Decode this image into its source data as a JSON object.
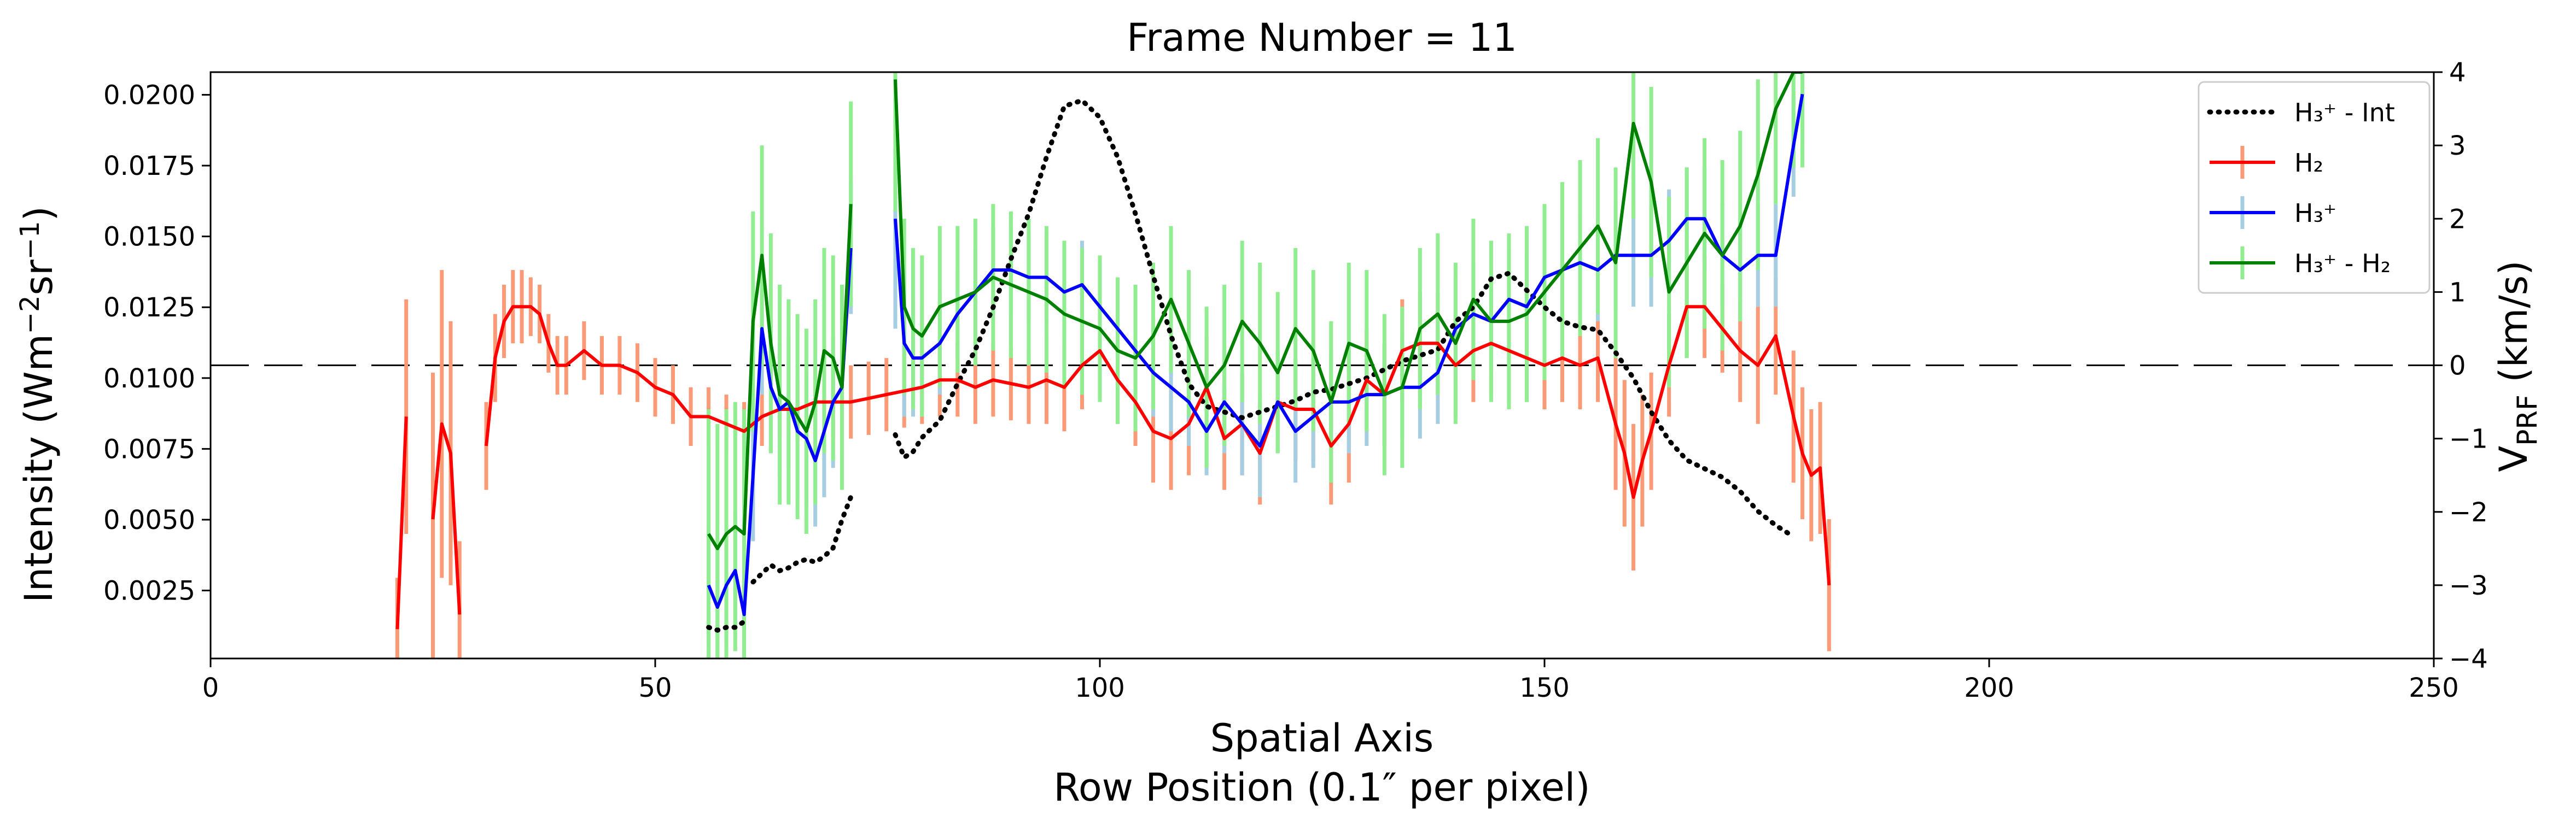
{
  "chart_data": {
    "type": "line",
    "title": "Frame Number = 11",
    "xlabel_line1": "Spatial Axis",
    "xlabel_line2": "Row Position (0.1″ per pixel)",
    "ylabel_left": "Intensity (Wm⁻²sr⁻¹)",
    "ylabel_right": "V_PRF (km/s)",
    "xlim": [
      0,
      250
    ],
    "ylim_left": [
      0.0001,
      0.0208
    ],
    "ylim_right": [
      -4,
      4
    ],
    "x_ticks": [
      0,
      50,
      100,
      150,
      200,
      250
    ],
    "y_left_ticks": [
      "0.0025",
      "0.0050",
      "0.0075",
      "0.0100",
      "0.0125",
      "0.0150",
      "0.0175",
      "0.0200"
    ],
    "y_right_ticks": [
      "-4",
      "-3",
      "-2",
      "-1",
      "0",
      "1",
      "2",
      "3",
      "4"
    ],
    "zero_line": 0,
    "legend_position": "top-right",
    "legend": [
      {
        "label": "H₃⁺ - Int",
        "style": "dotted",
        "color": "#000000"
      },
      {
        "label": "H₂",
        "style": "solid",
        "color": "#ff0000"
      },
      {
        "label": "H₃⁺",
        "style": "solid",
        "color": "#0000ff"
      },
      {
        "label": "H₃⁺ - H₂",
        "style": "solid",
        "color": "#008000"
      }
    ],
    "series": [
      {
        "name": "H₃⁺ - Int",
        "axis": "left",
        "color": "#000000",
        "style": "dotted",
        "segments": [
          {
            "x": [
              56,
              57,
              58,
              59,
              60
            ],
            "y": [
              0.0012,
              0.0011,
              0.0012,
              0.0012,
              0.0014
            ]
          },
          {
            "x": [
              61,
              62,
              63,
              64,
              65,
              66,
              67,
              68,
              69,
              70,
              71,
              72
            ],
            "y": [
              0.0028,
              0.0031,
              0.0034,
              0.0032,
              0.0033,
              0.0035,
              0.0036,
              0.0035,
              0.0037,
              0.004,
              0.005,
              0.0058
            ]
          },
          {
            "x": [
              77,
              78,
              79,
              80,
              82,
              84,
              86,
              88,
              90,
              92,
              94,
              96,
              98,
              100,
              102,
              104,
              106,
              108,
              110,
              112,
              114,
              116,
              118,
              120,
              122,
              124,
              126,
              128,
              130,
              132,
              134,
              136,
              138,
              140,
              142,
              144,
              146,
              148,
              150,
              152,
              154,
              156,
              158,
              160,
              162,
              164,
              166,
              168,
              170,
              172,
              174,
              176,
              178
            ],
            "y": [
              0.008,
              0.0072,
              0.0074,
              0.0079,
              0.0085,
              0.0098,
              0.011,
              0.0125,
              0.0142,
              0.0158,
              0.0178,
              0.0196,
              0.0198,
              0.0192,
              0.0178,
              0.0158,
              0.0136,
              0.0115,
              0.0098,
              0.009,
              0.0088,
              0.0086,
              0.0088,
              0.009,
              0.0092,
              0.0095,
              0.0096,
              0.0098,
              0.01,
              0.0103,
              0.0106,
              0.0108,
              0.011,
              0.012,
              0.0125,
              0.0135,
              0.0137,
              0.0131,
              0.0125,
              0.012,
              0.0118,
              0.0117,
              0.0109,
              0.01,
              0.0088,
              0.0078,
              0.0071,
              0.0068,
              0.0065,
              0.006,
              0.0053,
              0.0048,
              0.0044
            ]
          }
        ]
      },
      {
        "name": "H₂",
        "axis": "right",
        "color": "#ff0000",
        "error_color": "#fa9a76",
        "style": "solid",
        "segments": [
          {
            "x": [
              21,
              22
            ],
            "y": [
              -3.6,
              -0.7
            ],
            "err": [
              0.7,
              1.6
            ]
          },
          {
            "x": [
              25,
              26,
              27,
              28
            ],
            "y": [
              -2.1,
              -0.8,
              -1.2,
              -3.4
            ],
            "err": [
              2.0,
              2.1,
              1.8,
              1.0
            ]
          },
          {
            "x": [
              31,
              32,
              33,
              34,
              35,
              36,
              37,
              38,
              39,
              40,
              42,
              44,
              46,
              48,
              50,
              52,
              54,
              56,
              58,
              60,
              62,
              64,
              66,
              68,
              70,
              72,
              74,
              76,
              78,
              80,
              82,
              84,
              86,
              88,
              90,
              92,
              94,
              96,
              98,
              100,
              102,
              104,
              106,
              108,
              110,
              112,
              114,
              116,
              118,
              120,
              122,
              124,
              126,
              128,
              130,
              132,
              134,
              136,
              138,
              140,
              142,
              144,
              146,
              148,
              150,
              152,
              154,
              156,
              158,
              159,
              160,
              161,
              162,
              164,
              166,
              168,
              170,
              172,
              174,
              176,
              178,
              179,
              180,
              181,
              182
            ],
            "y": [
              -1.1,
              0.1,
              0.6,
              0.8,
              0.8,
              0.8,
              0.7,
              0.3,
              0.0,
              0.0,
              0.2,
              0.0,
              0.0,
              -0.1,
              -0.3,
              -0.4,
              -0.7,
              -0.7,
              -0.8,
              -0.9,
              -0.7,
              -0.6,
              -0.6,
              -0.5,
              -0.5,
              -0.5,
              -0.45,
              -0.4,
              -0.35,
              -0.3,
              -0.2,
              -0.2,
              -0.3,
              -0.2,
              -0.25,
              -0.3,
              -0.2,
              -0.3,
              0.0,
              0.2,
              -0.2,
              -0.5,
              -0.9,
              -1.0,
              -0.8,
              -0.3,
              -1.0,
              -0.8,
              -1.2,
              -0.5,
              -0.6,
              -0.6,
              -1.1,
              -0.8,
              -0.2,
              -0.4,
              0.2,
              0.3,
              0.3,
              0.0,
              0.2,
              0.3,
              0.2,
              0.1,
              0.0,
              0.1,
              0.0,
              0.1,
              -0.8,
              -1.2,
              -1.8,
              -1.3,
              -0.9,
              0.0,
              0.8,
              0.8,
              0.5,
              0.2,
              0.0,
              0.4,
              -0.7,
              -1.2,
              -1.5,
              -1.4,
              -3.0
            ],
            "err": [
              0.6,
              0.6,
              0.5,
              0.5,
              0.5,
              0.4,
              0.4,
              0.4,
              0.4,
              0.4,
              0.4,
              0.4,
              0.4,
              0.4,
              0.4,
              0.4,
              0.4,
              0.4,
              0.4,
              0.4,
              0.4,
              0.4,
              0.4,
              0.5,
              0.5,
              0.5,
              0.5,
              0.5,
              0.5,
              0.5,
              0.5,
              0.5,
              0.5,
              0.5,
              0.5,
              0.5,
              0.6,
              0.6,
              0.6,
              0.6,
              0.6,
              0.6,
              0.7,
              0.7,
              0.7,
              0.7,
              0.7,
              0.7,
              0.7,
              0.7,
              0.7,
              0.7,
              0.8,
              0.8,
              0.7,
              0.7,
              0.7,
              0.7,
              0.7,
              0.7,
              0.7,
              0.7,
              0.7,
              0.6,
              0.6,
              0.6,
              0.6,
              0.6,
              0.9,
              1.0,
              1.0,
              0.9,
              0.8,
              0.7,
              0.7,
              0.7,
              0.6,
              0.7,
              0.8,
              0.8,
              0.9,
              0.9,
              0.9,
              0.9,
              0.9
            ]
          }
        ]
      },
      {
        "name": "H₃⁺",
        "axis": "right",
        "color": "#0000ff",
        "error_color": "#a6cee3",
        "style": "solid",
        "segments": [
          {
            "x": [
              56,
              57,
              58,
              59,
              60,
              61,
              62,
              63,
              64,
              65,
              66,
              67,
              68,
              69,
              70,
              71,
              72
            ],
            "y": [
              -3.0,
              -3.3,
              -3.0,
              -2.8,
              -3.4,
              -1.5,
              0.5,
              -0.3,
              -0.6,
              -0.5,
              -0.9,
              -1.0,
              -1.3,
              -0.9,
              -0.5,
              -0.3,
              1.6
            ],
            "err": [
              0.8,
              0.8,
              0.8,
              0.8,
              0.8,
              0.9,
              0.9,
              0.9,
              0.9,
              0.9,
              0.9,
              0.9,
              0.9,
              0.9,
              0.9,
              0.9,
              0.9
            ]
          },
          {
            "x": [
              77,
              78,
              79,
              80,
              82,
              84,
              86,
              88,
              90,
              92,
              94,
              96,
              98,
              100,
              102,
              104,
              106,
              108,
              110,
              112,
              114,
              116,
              118,
              120,
              122,
              124,
              126,
              128,
              130,
              132,
              134,
              136,
              138,
              140,
              142,
              144,
              146,
              148,
              150,
              152,
              154,
              156,
              158,
              160,
              162,
              164,
              166,
              168,
              170,
              172,
              174,
              176,
              178,
              179
            ],
            "y": [
              2.0,
              0.3,
              0.1,
              0.1,
              0.3,
              0.7,
              1.0,
              1.3,
              1.3,
              1.2,
              1.2,
              1.0,
              1.1,
              0.8,
              0.5,
              0.2,
              -0.1,
              -0.3,
              -0.5,
              -0.9,
              -0.5,
              -0.8,
              -1.1,
              -0.5,
              -0.9,
              -0.7,
              -0.5,
              -0.5,
              -0.4,
              -0.4,
              -0.3,
              -0.3,
              -0.1,
              0.5,
              0.7,
              0.6,
              0.9,
              0.8,
              1.2,
              1.3,
              1.4,
              1.3,
              1.5,
              1.5,
              1.5,
              1.7,
              2.0,
              2.0,
              1.5,
              1.3,
              1.5,
              1.5,
              3.0,
              3.7
            ],
            "err": [
              1.5,
              1.0,
              0.8,
              0.7,
              0.7,
              0.6,
              0.6,
              0.6,
              0.6,
              0.6,
              0.6,
              0.6,
              0.6,
              0.6,
              0.6,
              0.6,
              0.6,
              0.6,
              0.6,
              0.6,
              0.7,
              0.7,
              0.7,
              0.7,
              0.7,
              0.7,
              0.7,
              0.7,
              0.7,
              0.7,
              0.7,
              0.7,
              0.7,
              0.7,
              0.7,
              0.7,
              0.7,
              0.7,
              0.7,
              0.7,
              0.7,
              0.7,
              0.7,
              0.7,
              0.7,
              0.7,
              0.7,
              0.7,
              0.7,
              0.7,
              0.7,
              0.7,
              0.7,
              0.7
            ]
          }
        ]
      },
      {
        "name": "H₃⁺ - H₂",
        "axis": "right",
        "color": "#008000",
        "error_color": "#90ee90",
        "style": "solid",
        "segments": [
          {
            "x": [
              56,
              57,
              58,
              59,
              60,
              61,
              62,
              63,
              64,
              65,
              66,
              67,
              68,
              69,
              70,
              71,
              72
            ],
            "y": [
              -2.3,
              -2.5,
              -2.3,
              -2.2,
              -2.3,
              0.6,
              1.5,
              0.3,
              -0.4,
              -0.5,
              -0.7,
              -0.9,
              -0.5,
              0.2,
              0.1,
              -0.3,
              2.2
            ],
            "err": [
              1.7,
              1.7,
              1.7,
              1.7,
              1.7,
              1.5,
              1.5,
              1.5,
              1.5,
              1.4,
              1.4,
              1.4,
              1.4,
              1.4,
              1.4,
              1.4,
              1.4
            ]
          },
          {
            "x": [
              77,
              78,
              79,
              80,
              82,
              84,
              86,
              88,
              90,
              92,
              94,
              96,
              98,
              100,
              102,
              104,
              106,
              108,
              110,
              112,
              114,
              116,
              118,
              120,
              122,
              124,
              126,
              128,
              130,
              132,
              134,
              136,
              138,
              140,
              142,
              144,
              146,
              148,
              150,
              152,
              154,
              156,
              158,
              160,
              162,
              164,
              166,
              168,
              170,
              172,
              174,
              176,
              178,
              179
            ],
            "y": [
              3.9,
              0.8,
              0.5,
              0.4,
              0.8,
              0.9,
              1.0,
              1.2,
              1.1,
              1.0,
              0.9,
              0.7,
              0.6,
              0.5,
              0.2,
              0.1,
              0.4,
              0.9,
              0.3,
              -0.3,
              0.0,
              0.6,
              0.3,
              -0.1,
              0.5,
              0.2,
              -0.5,
              0.3,
              0.2,
              -0.4,
              -0.3,
              0.5,
              0.7,
              0.3,
              0.9,
              0.6,
              0.6,
              0.7,
              1.0,
              1.3,
              1.6,
              1.9,
              1.4,
              3.3,
              2.5,
              1.0,
              1.4,
              1.8,
              1.5,
              1.9,
              2.6,
              3.5,
              4.0,
              4.0
            ],
            "err": [
              1.8,
              1.2,
              1.1,
              1.1,
              1.1,
              1.0,
              1.0,
              1.0,
              1.0,
              1.0,
              1.0,
              1.0,
              1.0,
              1.0,
              1.0,
              1.0,
              1.0,
              1.0,
              1.0,
              1.1,
              1.1,
              1.1,
              1.1,
              1.1,
              1.1,
              1.1,
              1.1,
              1.1,
              1.1,
              1.1,
              1.1,
              1.1,
              1.1,
              1.1,
              1.1,
              1.1,
              1.2,
              1.2,
              1.2,
              1.2,
              1.2,
              1.2,
              1.3,
              1.3,
              1.3,
              1.3,
              1.3,
              1.3,
              1.3,
              1.3,
              1.3,
              1.3,
              1.3,
              1.3
            ]
          }
        ]
      }
    ]
  }
}
